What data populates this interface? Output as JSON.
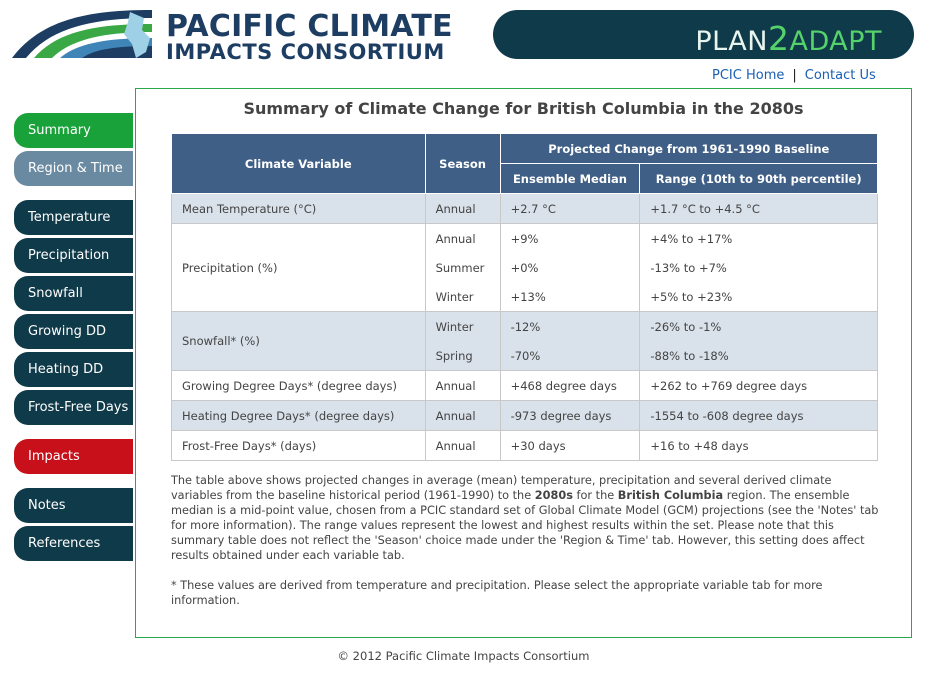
{
  "header": {
    "logo_line1": "PACIFIC CLIMATE",
    "logo_line2": "IMPACTS CONSORTIUM",
    "plan_part1": "PLAN",
    "plan_part2": "2",
    "plan_part3": "ADAPT",
    "links": {
      "home": "PCIC Home",
      "separator": "|",
      "contact": "Contact Us"
    }
  },
  "sidebar": {
    "items": [
      {
        "label": "Summary",
        "state": "active"
      },
      {
        "label": "Region & Time",
        "state": "secondary"
      },
      {
        "label": "Temperature"
      },
      {
        "label": "Precipitation"
      },
      {
        "label": "Snowfall"
      },
      {
        "label": "Growing DD"
      },
      {
        "label": "Heating DD"
      },
      {
        "label": "Frost-Free Days"
      },
      {
        "label": "Impacts",
        "state": "highlight"
      },
      {
        "label": "Notes"
      },
      {
        "label": "References"
      }
    ]
  },
  "main": {
    "title": "Summary of Climate Change for British Columbia in the 2080s",
    "table": {
      "headers": {
        "variable": "Climate Variable",
        "season": "Season",
        "projected": "Projected Change from 1961-1990 Baseline",
        "median": "Ensemble Median",
        "range": "Range (10th to 90th percentile)"
      },
      "rows": [
        {
          "variable": "Mean Temperature (°C)",
          "entries": [
            {
              "season": "Annual",
              "median": "+2.7 °C",
              "range": "+1.7 °C to +4.5 °C"
            }
          ]
        },
        {
          "variable": "Precipitation (%)",
          "entries": [
            {
              "season": "Annual",
              "median": "+9%",
              "range": "+4% to +17%"
            },
            {
              "season": "Summer",
              "median": "+0%",
              "range": "-13% to +7%"
            },
            {
              "season": "Winter",
              "median": "+13%",
              "range": "+5% to +23%"
            }
          ]
        },
        {
          "variable": "Snowfall* (%)",
          "entries": [
            {
              "season": "Winter",
              "median": "-12%",
              "range": "-26% to -1%"
            },
            {
              "season": "Spring",
              "median": "-70%",
              "range": "-88% to -18%"
            }
          ]
        },
        {
          "variable": "Growing Degree Days* (degree days)",
          "entries": [
            {
              "season": "Annual",
              "median": "+468 degree days",
              "range": "+262 to +769 degree days"
            }
          ]
        },
        {
          "variable": "Heating Degree Days* (degree days)",
          "entries": [
            {
              "season": "Annual",
              "median": "-973 degree days",
              "range": "-1554 to -608 degree days"
            }
          ]
        },
        {
          "variable": "Frost-Free Days* (days)",
          "entries": [
            {
              "season": "Annual",
              "median": "+30 days",
              "range": "+16 to +48 days"
            }
          ]
        }
      ]
    },
    "description": {
      "p1_a": "The table above shows projected changes in average (mean) temperature, precipitation and several derived climate variables from the baseline historical period (1961-1990) to the ",
      "p1_bold1": "2080s",
      "p1_b": " for the ",
      "p1_bold2": "British Columbia",
      "p1_c": " region. The ensemble median is a mid-point value, chosen from a PCIC standard set of Global Climate Model (GCM) projections (see the 'Notes' tab for more information). The range values represent the lowest and highest results within the set. Please note that this summary table does not reflect the 'Season' choice made under the 'Region & Time' tab. However, this setting does affect results obtained under each variable tab.",
      "p2": "* These values are derived from temperature and precipitation. Please select the appropriate variable tab for more information."
    }
  },
  "footer": {
    "copyright": "© 2012 Pacific Climate Impacts Consortium"
  },
  "colors": {
    "nav_dark": "#0f3a49",
    "nav_active": "#1aa23a",
    "nav_secondary": "#6a8aa2",
    "nav_highlight": "#c8101a",
    "table_header": "#3f5f86",
    "panel_border": "#2aa84a"
  }
}
